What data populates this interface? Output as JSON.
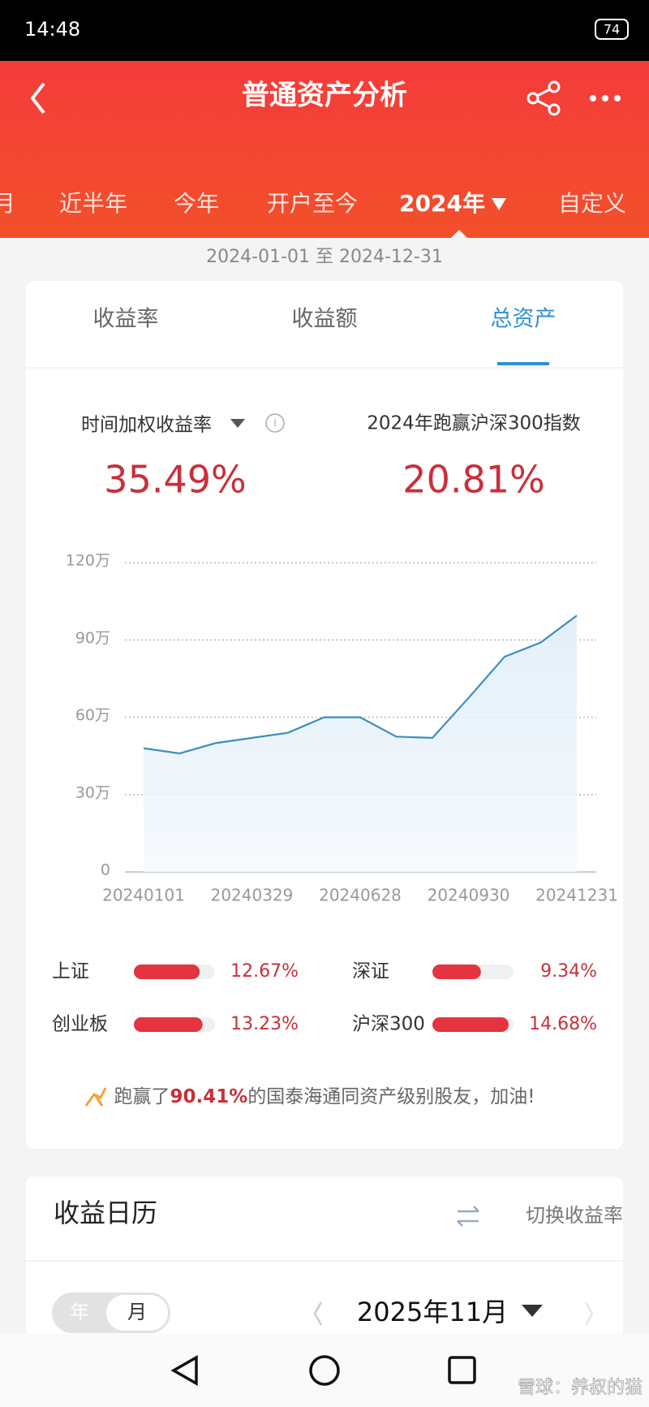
{
  "status_bar": {
    "time": "14:48",
    "battery": "74"
  },
  "header": {
    "title": "普通资产分析"
  },
  "period_tabs": [
    "月",
    "近半年",
    "今年",
    "开户至今",
    "2024年",
    "自定义"
  ],
  "active_period": 4,
  "date_range": "2024-01-01 至 2024-12-31",
  "card_tabs": [
    "收益率",
    "收益额",
    "总资产"
  ],
  "active_card_tab": 2,
  "metrics": [
    {
      "label": "时间加权收益率",
      "value": "35.49%"
    },
    {
      "label": "2024年跑赢沪深300指数",
      "value": "20.81%"
    }
  ],
  "chart_data": {
    "type": "line",
    "categories": [
      "20240101",
      null,
      null,
      "20240329",
      null,
      null,
      "20240628",
      null,
      null,
      "20240930",
      null,
      null,
      "20241231"
    ],
    "series": [
      {
        "color": "#3a8fbf",
        "values": [
          48,
          46,
          50,
          52,
          54,
          60,
          60,
          52.5,
          52,
          67.5,
          83.5,
          89,
          99.5
        ]
      }
    ],
    "ylim": [
      0,
      120
    ],
    "yticks": [
      0,
      {
        "value": 30,
        "label": "30万"
      },
      {
        "value": 60,
        "label": "60万"
      },
      {
        "value": 90,
        "label": "90万"
      },
      {
        "value": 120,
        "label": "120万"
      }
    ],
    "grid": true
  },
  "indices": [
    {
      "name": "上证",
      "value": 12.67,
      "label": "12.67%"
    },
    {
      "name": "深证",
      "value": 9.34,
      "label": "9.34%"
    },
    {
      "name": "创业板",
      "value": 13.23,
      "label": "13.23%"
    },
    {
      "name": "沪深300",
      "value": 14.68,
      "label": "14.68%"
    }
  ],
  "beat": {
    "prefix": "跑赢了",
    "highlight": "90.41%",
    "suffix": "的国泰海通同资产级别股友，加油!"
  },
  "calendar": {
    "title": "收益日历",
    "switch": "切换收益率",
    "toggle": [
      "年",
      "月"
    ],
    "month": "2025年11月"
  },
  "watermark": "雪球：养叔的猫"
}
